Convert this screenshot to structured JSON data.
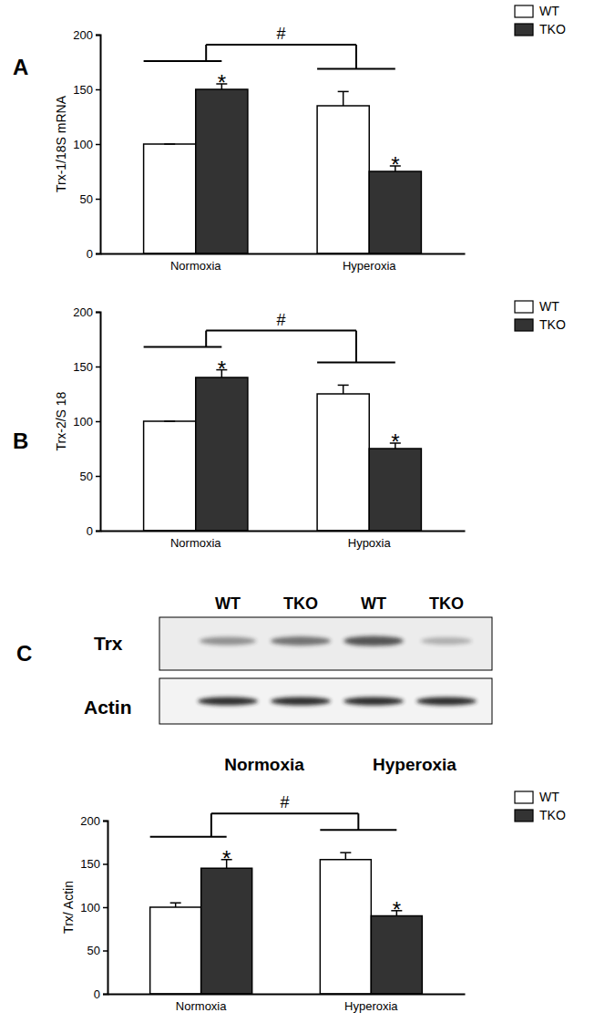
{
  "chart_data": [
    {
      "type": "bar",
      "panel": "A",
      "ylabel": "Trx-1/18S mRNA",
      "categories": [
        "Normoxia",
        "Hyperoxia"
      ],
      "series": [
        {
          "name": "WT",
          "color": "#ffffff",
          "values": [
            100,
            135
          ],
          "error": [
            0,
            13
          ]
        },
        {
          "name": "TKO",
          "color": "#333333",
          "values": [
            150,
            75
          ],
          "error": [
            5,
            5
          ]
        }
      ],
      "ylim": [
        0,
        200
      ],
      "yticks": [
        0,
        50,
        100,
        150,
        200
      ],
      "legend": "top-right",
      "annotations": [
        {
          "text": "*",
          "series": 1,
          "category": 0
        },
        {
          "text": "*",
          "series": 1,
          "category": 1
        },
        {
          "text": "#",
          "between": [
            0,
            1
          ]
        }
      ]
    },
    {
      "type": "bar",
      "panel": "B",
      "ylabel": "Trx-2/S 18",
      "categories": [
        "Normoxia",
        "Hypoxia"
      ],
      "series": [
        {
          "name": "WT",
          "color": "#ffffff",
          "values": [
            100,
            125
          ],
          "error": [
            0,
            8
          ]
        },
        {
          "name": "TKO",
          "color": "#333333",
          "values": [
            140,
            75
          ],
          "error": [
            7,
            5
          ]
        }
      ],
      "ylim": [
        0,
        200
      ],
      "yticks": [
        0,
        50,
        100,
        150,
        200
      ],
      "legend": "top-right",
      "annotations": [
        {
          "text": "*",
          "series": 1,
          "category": 0
        },
        {
          "text": "*",
          "series": 1,
          "category": 1
        },
        {
          "text": "#",
          "between": [
            0,
            1
          ]
        }
      ]
    },
    {
      "type": "bar",
      "ylabel": "Trx/ Actin",
      "categories": [
        "Normoxia",
        "Hyperoxia"
      ],
      "series": [
        {
          "name": "WT",
          "color": "#ffffff",
          "values": [
            100,
            155
          ],
          "error": [
            5,
            8
          ]
        },
        {
          "name": "TKO",
          "color": "#333333",
          "values": [
            145,
            90
          ],
          "error": [
            10,
            6
          ]
        }
      ],
      "ylim": [
        0,
        200
      ],
      "yticks": [
        0,
        50,
        100,
        150,
        200
      ],
      "legend": "top-right",
      "annotations": [
        {
          "text": "*",
          "series": 1,
          "category": 0
        },
        {
          "text": "*",
          "series": 1,
          "category": 1
        },
        {
          "text": "#",
          "between": [
            0,
            1
          ]
        }
      ]
    }
  ],
  "blot": {
    "panel": "C",
    "lanes": [
      "WT",
      "TKO",
      "WT",
      "TKO"
    ],
    "rows": [
      "Trx",
      "Actin"
    ],
    "conditions": [
      "Normoxia",
      "Hyperoxia"
    ]
  }
}
